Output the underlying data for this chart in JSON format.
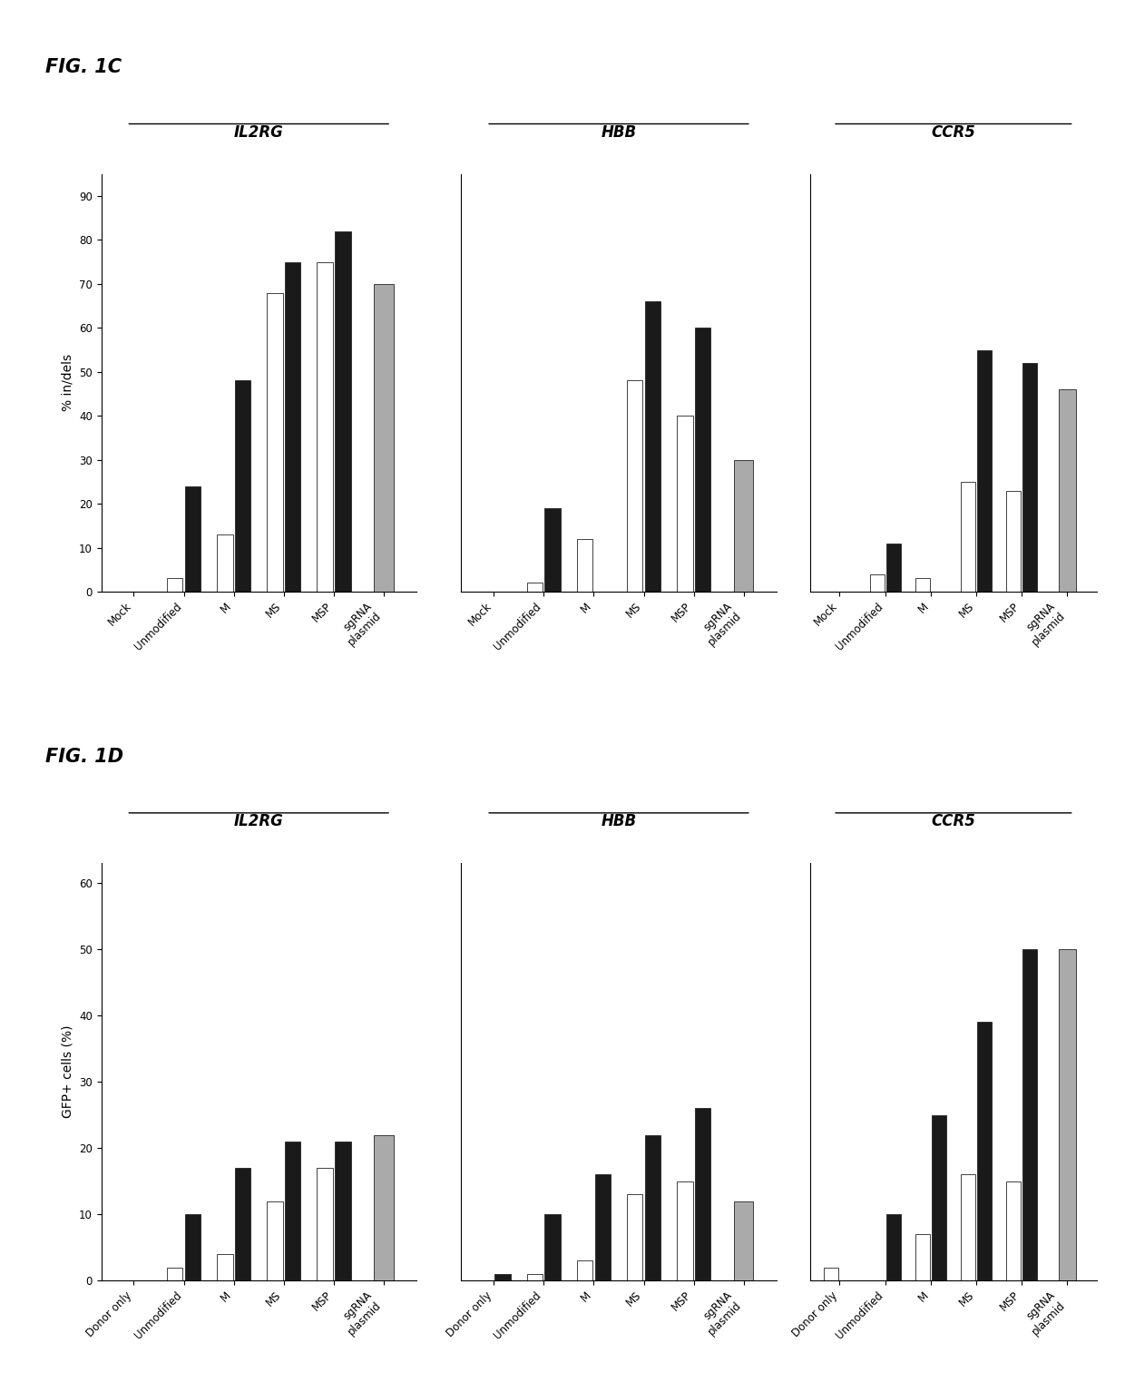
{
  "fig1c": {
    "title": "FIG. 1C",
    "ylabel": "% in/dels",
    "ylim": [
      0,
      95
    ],
    "yticks": [
      0,
      10,
      20,
      30,
      40,
      50,
      60,
      70,
      80,
      90
    ],
    "groups": [
      "Mock",
      "Unmodified",
      "M",
      "MS",
      "MSP",
      "sgRNA\nplasmid"
    ],
    "subplots": [
      {
        "title": "IL2RG",
        "white_bars": [
          0,
          3,
          13,
          68,
          75,
          0
        ],
        "black_bars": [
          0,
          24,
          48,
          75,
          82,
          0
        ],
        "gray_bars": [
          0,
          0,
          0,
          0,
          0,
          70
        ]
      },
      {
        "title": "HBB",
        "white_bars": [
          0,
          2,
          12,
          48,
          40,
          0
        ],
        "black_bars": [
          0,
          19,
          0,
          66,
          60,
          0
        ],
        "gray_bars": [
          0,
          0,
          0,
          0,
          0,
          30
        ]
      },
      {
        "title": "CCR5",
        "white_bars": [
          0,
          4,
          3,
          25,
          23,
          0
        ],
        "black_bars": [
          0,
          11,
          0,
          55,
          52,
          0
        ],
        "gray_bars": [
          0,
          0,
          0,
          0,
          0,
          46
        ]
      }
    ]
  },
  "fig1d": {
    "title": "FIG. 1D",
    "ylabel": "GFP+ cells (%)",
    "ylim": [
      0,
      63
    ],
    "yticks": [
      0,
      10,
      20,
      30,
      40,
      50,
      60
    ],
    "groups": [
      "Donor only",
      "Unmodified",
      "M",
      "MS",
      "MSP",
      "sgRNA\nplasmid"
    ],
    "subplots": [
      {
        "title": "IL2RG",
        "white_bars": [
          0,
          2,
          4,
          12,
          17,
          0
        ],
        "black_bars": [
          0,
          10,
          17,
          21,
          21,
          0
        ],
        "gray_bars": [
          0,
          0,
          0,
          0,
          0,
          22
        ]
      },
      {
        "title": "HBB",
        "white_bars": [
          0,
          1,
          3,
          13,
          15,
          0
        ],
        "black_bars": [
          1,
          10,
          16,
          22,
          26,
          0
        ],
        "gray_bars": [
          0,
          0,
          0,
          0,
          0,
          12
        ]
      },
      {
        "title": "CCR5",
        "white_bars": [
          2,
          0,
          7,
          16,
          15,
          0
        ],
        "black_bars": [
          0,
          10,
          25,
          39,
          50,
          0
        ],
        "gray_bars": [
          0,
          0,
          0,
          0,
          0,
          50
        ]
      }
    ]
  },
  "bar_width": 0.32,
  "white_color": "#ffffff",
  "black_color": "#1a1a1a",
  "gray_color": "#aaaaaa",
  "edge_color": "#222222",
  "background_color": "#ffffff",
  "fig_title_fontsize": 15,
  "subplot_title_fontsize": 12,
  "tick_fontsize": 8.5,
  "label_fontsize": 10
}
